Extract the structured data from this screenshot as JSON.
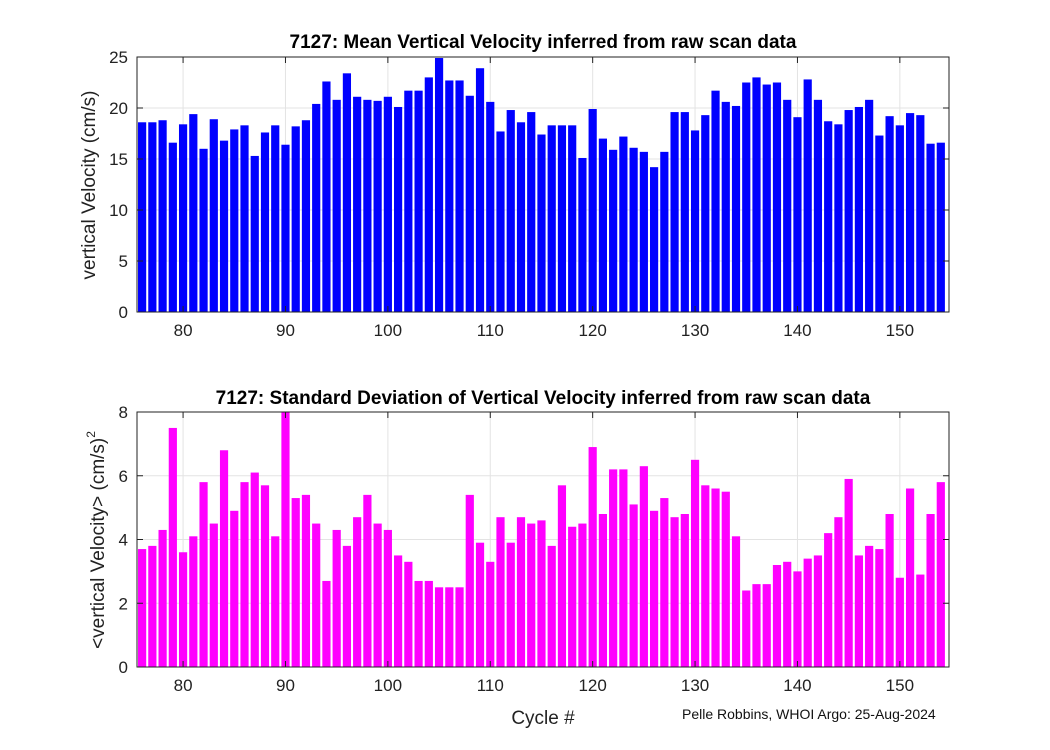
{
  "chart_data": [
    {
      "type": "bar",
      "title": "7127: Mean Vertical Velocity inferred from raw scan data",
      "xlabel": "",
      "ylabel": "vertical Velocity (cm/s)",
      "xlim": [
        75.5,
        154.8
      ],
      "ylim": [
        0,
        25
      ],
      "xticks": [
        80,
        90,
        100,
        110,
        120,
        130,
        140,
        150
      ],
      "yticks": [
        0,
        5,
        10,
        15,
        20,
        25
      ],
      "grid": true,
      "color": "#0000ff",
      "x": [
        76,
        77,
        78,
        79,
        80,
        81,
        82,
        83,
        84,
        85,
        86,
        87,
        88,
        89,
        90,
        91,
        92,
        93,
        94,
        95,
        96,
        97,
        98,
        99,
        100,
        101,
        102,
        103,
        104,
        105,
        106,
        107,
        108,
        109,
        110,
        111,
        112,
        113,
        114,
        115,
        116,
        117,
        118,
        119,
        120,
        121,
        122,
        123,
        124,
        125,
        126,
        127,
        128,
        129,
        130,
        131,
        132,
        133,
        134,
        135,
        136,
        137,
        138,
        139,
        140,
        141,
        142,
        143,
        144,
        145,
        146,
        147,
        148,
        149,
        150,
        151,
        152,
        153,
        154
      ],
      "values": [
        18.6,
        18.6,
        18.8,
        16.6,
        18.4,
        19.4,
        16.0,
        18.9,
        16.8,
        17.9,
        18.3,
        15.3,
        17.6,
        18.3,
        16.4,
        18.2,
        18.8,
        20.4,
        22.6,
        20.8,
        23.4,
        21.1,
        20.8,
        20.7,
        21.1,
        20.1,
        21.7,
        21.7,
        23.0,
        24.9,
        22.7,
        22.7,
        21.2,
        23.9,
        20.6,
        17.7,
        19.8,
        18.6,
        19.6,
        17.4,
        18.3,
        18.3,
        18.3,
        15.1,
        19.9,
        17.0,
        15.9,
        17.2,
        16.1,
        15.7,
        14.2,
        15.7,
        19.6,
        19.6,
        17.8,
        19.3,
        21.7,
        20.6,
        20.2,
        22.5,
        23.0,
        22.3,
        22.5,
        20.8,
        19.1,
        22.8,
        20.8,
        18.7,
        18.4,
        19.8,
        20.1,
        20.8,
        17.3,
        19.2,
        18.3,
        19.5,
        19.3,
        16.5,
        16.6
      ]
    },
    {
      "type": "bar",
      "title": "7127: Standard Deviation of Vertical Velocity inferred from raw scan data",
      "xlabel": "Cycle #",
      "ylabel": "<vertical Velocity> (cm/s)",
      "ylabel_superscript": "2",
      "xlim": [
        75.5,
        154.8
      ],
      "ylim": [
        0,
        8
      ],
      "xticks": [
        80,
        90,
        100,
        110,
        120,
        130,
        140,
        150
      ],
      "yticks": [
        0,
        2,
        4,
        6,
        8
      ],
      "grid": true,
      "color": "#ff00ff",
      "x": [
        76,
        77,
        78,
        79,
        80,
        81,
        82,
        83,
        84,
        85,
        86,
        87,
        88,
        89,
        90,
        91,
        92,
        93,
        94,
        95,
        96,
        97,
        98,
        99,
        100,
        101,
        102,
        103,
        104,
        105,
        106,
        107,
        108,
        109,
        110,
        111,
        112,
        113,
        114,
        115,
        116,
        117,
        118,
        119,
        120,
        121,
        122,
        123,
        124,
        125,
        126,
        127,
        128,
        129,
        130,
        131,
        132,
        133,
        134,
        135,
        136,
        137,
        138,
        139,
        140,
        141,
        142,
        143,
        144,
        145,
        146,
        147,
        148,
        149,
        150,
        151,
        152,
        153,
        154
      ],
      "values": [
        3.7,
        3.8,
        4.3,
        7.5,
        3.6,
        4.1,
        5.8,
        4.5,
        6.8,
        4.9,
        5.8,
        6.1,
        5.7,
        4.1,
        8.0,
        5.3,
        5.4,
        4.5,
        2.7,
        4.3,
        3.8,
        4.7,
        5.4,
        4.5,
        4.3,
        3.5,
        3.3,
        2.7,
        2.7,
        2.5,
        2.5,
        2.5,
        5.4,
        3.9,
        3.3,
        4.7,
        3.9,
        4.7,
        4.5,
        4.6,
        3.8,
        5.7,
        4.4,
        4.5,
        6.9,
        4.8,
        6.2,
        6.2,
        5.1,
        6.3,
        4.9,
        5.3,
        4.7,
        4.8,
        6.5,
        5.7,
        5.6,
        5.5,
        4.1,
        2.4,
        2.6,
        2.6,
        3.2,
        3.3,
        3.0,
        3.4,
        3.5,
        4.2,
        4.7,
        5.9,
        3.5,
        3.8,
        3.7,
        4.8,
        2.8,
        5.6,
        2.9,
        4.8,
        5.8
      ]
    }
  ],
  "credit": "Pelle Robbins, WHOI Argo: 25-Aug-2024"
}
